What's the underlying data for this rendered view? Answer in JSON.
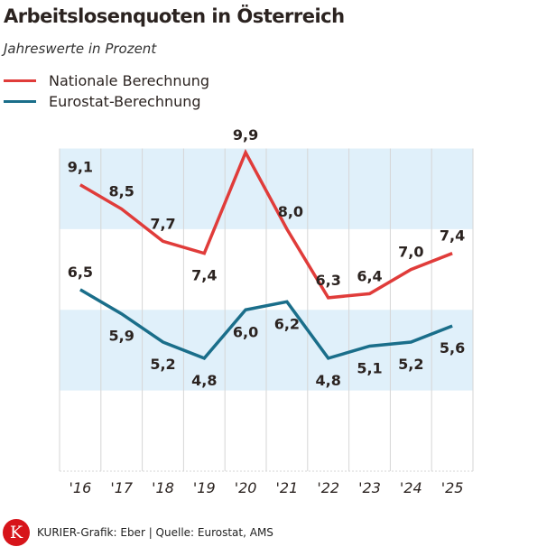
{
  "chart_data": {
    "type": "line",
    "title": "Arbeitslosenquoten in Österreich",
    "subtitle": "Jahreswerte in Prozent",
    "categories": [
      "'16",
      "'17",
      "'18",
      "'19",
      "'20",
      "'21",
      "'22",
      "'23",
      "'24",
      "'25"
    ],
    "ylim": [
      2,
      10
    ],
    "bands": [
      [
        8,
        10
      ],
      [
        4,
        6
      ]
    ],
    "legend_placement": "top-left",
    "series": [
      {
        "name": "Nationale Berechnung",
        "color": "#e03c3a",
        "values": [
          9.1,
          8.5,
          7.7,
          7.4,
          9.9,
          8.0,
          6.3,
          6.4,
          7.0,
          7.4
        ],
        "labels": [
          "9,1",
          "8,5",
          "7,7",
          "7,4",
          "9,9",
          "8,0",
          "6,3",
          "6,4",
          "7,0",
          "7,4"
        ]
      },
      {
        "name": "Eurostat-Berechnung",
        "color": "#1a6e8a",
        "values": [
          6.5,
          5.9,
          5.2,
          4.8,
          6.0,
          6.2,
          4.8,
          5.1,
          5.2,
          5.6
        ],
        "labels": [
          "6,5",
          "5,9",
          "5,2",
          "4,8",
          "6,0",
          "6,2",
          "4,8",
          "5,1",
          "5,2",
          "5,6"
        ]
      }
    ]
  },
  "footer": {
    "logo": "K",
    "source": "KURIER-Grafik: Eber | Quelle: Eurostat, AMS"
  }
}
